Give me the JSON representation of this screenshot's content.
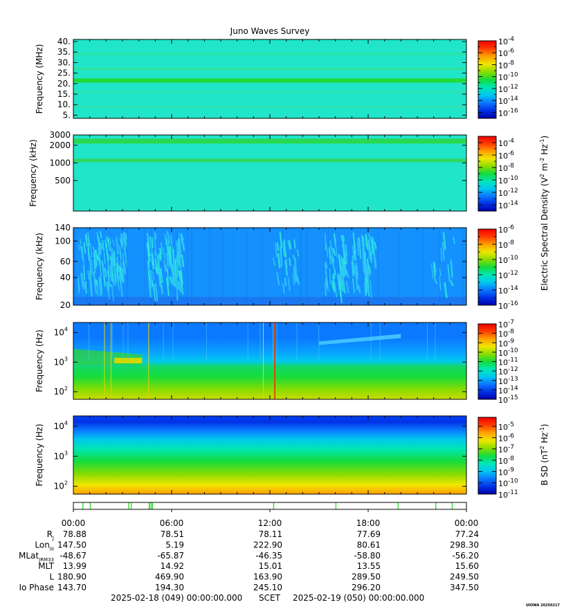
{
  "title": "Juno Waves Survey",
  "colors": {
    "scale": [
      "#0000a8",
      "#0032e6",
      "#0a78ff",
      "#00c8f0",
      "#00e6b4",
      "#14dc3c",
      "#8cdc00",
      "#f0e600",
      "#ffa000",
      "#ff3c00",
      "#f00000"
    ],
    "background": "#20e5c8"
  },
  "chart_data": [
    {
      "type": "heatmap",
      "ylabel": "Frequency (MHz)",
      "yscale": "linear",
      "ylim": [
        3.5,
        41
      ],
      "yticks": [
        5,
        10,
        15,
        20,
        25,
        30,
        35,
        40
      ],
      "ytick_labels": [
        "5.",
        "10.",
        "15.",
        "20.",
        "25.",
        "30.",
        "35.",
        "40."
      ],
      "colorbar": {
        "exponents": [
          -16,
          -14,
          -12,
          -10,
          -8,
          -6,
          -4
        ],
        "labels": [
          "-16",
          "-14",
          "-12",
          "-10",
          "-8",
          "-6",
          "-4"
        ],
        "range": [
          -17,
          -4
        ]
      }
    },
    {
      "type": "heatmap",
      "ylabel": "Frequency (kHz)",
      "yscale": "log",
      "ylim": [
        150,
        3000
      ],
      "yticks": [
        500,
        1000,
        2000,
        3000
      ],
      "ytick_labels": [
        "500",
        "1000",
        "2000",
        "3000"
      ],
      "colorbar": {
        "exponents": [
          -14,
          -12,
          -10,
          -8,
          -6,
          -4
        ],
        "labels": [
          "-14",
          "-12",
          "-10",
          "-8",
          "-6",
          "-4"
        ],
        "range": [
          -15,
          -3
        ]
      }
    },
    {
      "type": "heatmap",
      "ylabel": "Frequency (kHz)",
      "yscale": "log",
      "ylim": [
        20,
        140
      ],
      "yticks": [
        20,
        40,
        60,
        100,
        140
      ],
      "ytick_labels": [
        "20",
        "40",
        "60",
        "100",
        "140"
      ],
      "colorbar": {
        "exponents": [
          -16,
          -14,
          -12,
          -10,
          -8,
          -6
        ],
        "labels": [
          "-16",
          "-14",
          "-12",
          "-10",
          "-8",
          "-6"
        ],
        "range": [
          -16,
          -6
        ]
      }
    },
    {
      "type": "heatmap",
      "ylabel": "Frequency (Hz)",
      "yscale": "log",
      "ylim": [
        55,
        22000
      ],
      "yticks": [
        100,
        1000,
        10000
      ],
      "ytick_labels": [
        "10",
        "10",
        "10"
      ],
      "ytick_exponents": [
        "2",
        "3",
        "4"
      ],
      "colorbar": {
        "exponents": [
          -15,
          -14,
          -13,
          -12,
          -11,
          -10,
          -9,
          -8,
          -7
        ],
        "labels": [
          "-15",
          "-14",
          "-13",
          "-12",
          "-11",
          "-10",
          "-9",
          "-8",
          "-7"
        ],
        "range": [
          -15,
          -7
        ]
      }
    },
    {
      "type": "heatmap",
      "ylabel": "Frequency (Hz)",
      "yscale": "log",
      "ylim": [
        55,
        22000
      ],
      "yticks": [
        100,
        1000,
        10000
      ],
      "ytick_labels": [
        "10",
        "10",
        "10"
      ],
      "ytick_exponents": [
        "2",
        "3",
        "4"
      ],
      "colorbar": {
        "exponents": [
          -11,
          -10,
          -9,
          -8,
          -7,
          -6,
          -5
        ],
        "labels": [
          "-11",
          "-10",
          "-9",
          "-8",
          "-7",
          "-6",
          "-5"
        ],
        "range": [
          -11,
          -4.2
        ]
      }
    }
  ],
  "colorbar_titles": {
    "electric": {
      "prefix": "Electric Spectral Density (V",
      "sup1": "2",
      "mid": " m",
      "sup2": "-2",
      "mid2": " Hz",
      "sup3": "-1",
      "suffix": ")"
    },
    "magnetic": {
      "prefix": "B SD (nT",
      "sup1": "2",
      "mid": " Hz",
      "sup3": "-1",
      "suffix": ")"
    }
  },
  "colorbar_base": "10",
  "x_axis": {
    "ticks_hours": [
      0,
      6,
      12,
      18,
      24
    ],
    "labels": [
      "00:00",
      "06:00",
      "12:00",
      "18:00",
      "00:00"
    ]
  },
  "ephemeris": [
    {
      "label": "R",
      "sub": "J",
      "values": [
        "78.88",
        "78.51",
        "78.11",
        "77.69",
        "77.24"
      ]
    },
    {
      "label": "Lon",
      "sub": "III",
      "values": [
        "147.50",
        "5.19",
        "222.90",
        "80.61",
        "298.30"
      ]
    },
    {
      "label": "MLat",
      "sub": "JRM33",
      "values": [
        "-48.67",
        "-65.87",
        "-46.35",
        "-58.80",
        "-56.20"
      ]
    },
    {
      "label": "MLT",
      "sub": "",
      "values": [
        "13.99",
        "14.92",
        "15.01",
        "13.55",
        "15.60"
      ]
    },
    {
      "label": "L",
      "sub": "",
      "values": [
        "180.90",
        "469.90",
        "163.90",
        "289.50",
        "249.50"
      ]
    },
    {
      "label": "Io Phase",
      "sub": "",
      "values": [
        "143.70",
        "194.30",
        "245.10",
        "296.20",
        "347.50"
      ]
    }
  ],
  "footer": {
    "start": "2025-02-18 (049) 00:00:00.000",
    "scet": "SCET",
    "end": "2025-02-19 (050) 00:00:00.000",
    "stamp": "UIOWA 20250217"
  },
  "mode_bar_hours": [
    0.55,
    1.0,
    3.35,
    3.5,
    4.6,
    4.75,
    12.2,
    16.0,
    19.8,
    22.1,
    23.1
  ]
}
